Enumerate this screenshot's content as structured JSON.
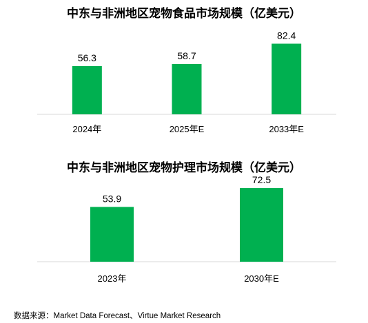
{
  "chart_data": [
    {
      "type": "bar",
      "title": "中东与非洲地区宠物食品市场规模（亿美元）",
      "categories": [
        "2024年",
        "2025年E",
        "2033年E"
      ],
      "values": [
        56.3,
        58.7,
        82.4
      ],
      "data_labels": [
        "56.3",
        "58.7",
        "82.4"
      ],
      "ylim": [
        0,
        90
      ],
      "grid": false,
      "bar_color": "#00b050",
      "axis_color": "#d9d9d9"
    },
    {
      "type": "bar",
      "title": "中东与非洲地区宠物护理市场规模（亿美元）",
      "categories": [
        "2023年",
        "2030年E"
      ],
      "values": [
        53.9,
        72.5
      ],
      "data_labels": [
        "53.9",
        "72.5"
      ],
      "ylim": [
        0,
        80
      ],
      "grid": false,
      "bar_color": "#00b050",
      "axis_color": "#d9d9d9"
    }
  ],
  "source": "数据来源：Market Data Forecast、Virtue Market Research"
}
